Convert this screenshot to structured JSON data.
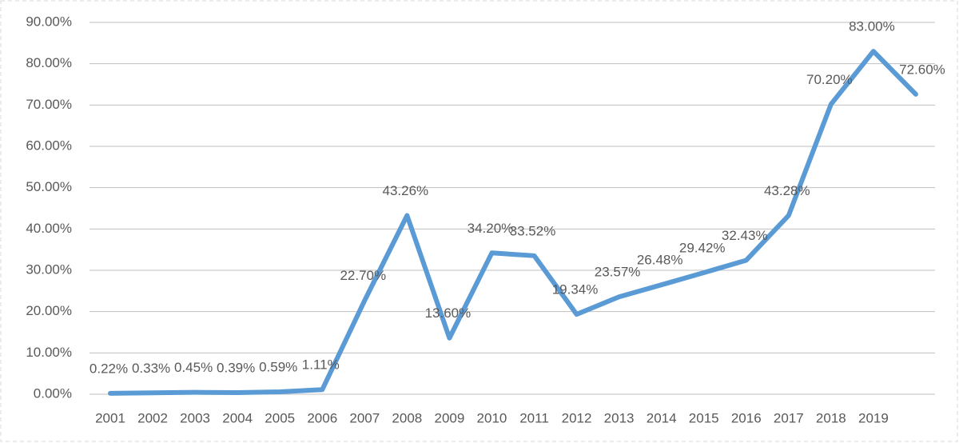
{
  "chart_data": {
    "type": "line",
    "categories": [
      "2001",
      "2002",
      "2003",
      "2004",
      "2005",
      "2006",
      "2007",
      "2008",
      "2009",
      "2010",
      "2011",
      "2012",
      "2013",
      "2014",
      "2015",
      "2016",
      "2017",
      "2018",
      "2019",
      null
    ],
    "series": [
      {
        "color": "#5b9bd5",
        "values": [
          0.22,
          0.33,
          0.45,
          0.39,
          0.59,
          1.11,
          22.7,
          43.26,
          13.6,
          34.2,
          33.52,
          19.34,
          23.57,
          26.48,
          29.42,
          32.43,
          43.28,
          70.2,
          83.0,
          72.6
        ],
        "value_labels": [
          "0.22%",
          "0.33%",
          "0.45%",
          "0.39%",
          "0.59%",
          "1.11%",
          "22.70%",
          "43.26%",
          "13.60%",
          "34.20%",
          "33.52%",
          "19.34%",
          "23.57%",
          "26.48%",
          "29.42%",
          "32.43%",
          "43.28%",
          "70.20%",
          "83.00%",
          "72.60%"
        ]
      }
    ],
    "ylim": [
      0,
      90
    ],
    "yticks": [
      {
        "value": 0,
        "label": "0.00%"
      },
      {
        "value": 10,
        "label": "10.00%"
      },
      {
        "value": 20,
        "label": "20.00%"
      },
      {
        "value": 30,
        "label": "30.00%"
      },
      {
        "value": 40,
        "label": "40.00%"
      },
      {
        "value": 50,
        "label": "50.00%"
      },
      {
        "value": 60,
        "label": "60.00%"
      },
      {
        "value": 70,
        "label": "70.00%"
      },
      {
        "value": 80,
        "label": "80.00%"
      },
      {
        "value": 90,
        "label": "90.00%"
      }
    ],
    "grid": true
  }
}
